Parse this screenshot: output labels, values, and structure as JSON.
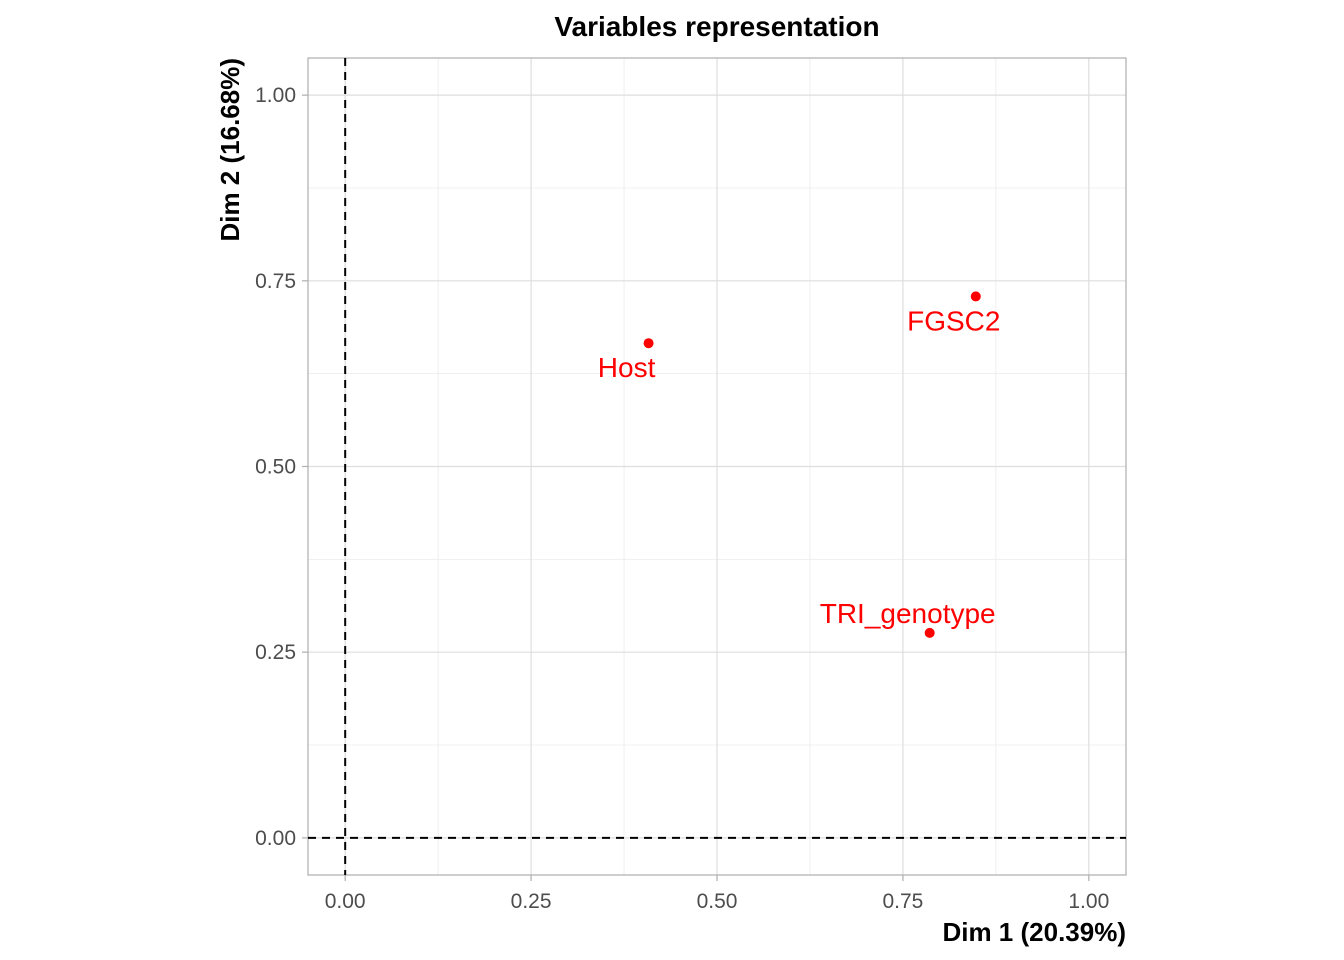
{
  "chart_data": {
    "type": "scatter",
    "title": "Variables representation",
    "xlabel": "Dim 1 (20.39%)",
    "ylabel": "Dim 2 (16.68%)",
    "xlim": [
      -0.05,
      1.05
    ],
    "ylim": [
      -0.05,
      1.05
    ],
    "xticks": [
      0.0,
      0.25,
      0.5,
      0.75,
      1.0
    ],
    "yticks": [
      0.0,
      0.25,
      0.5,
      0.75,
      1.0
    ],
    "xtick_labels": [
      "0.00",
      "0.25",
      "0.50",
      "0.75",
      "1.00"
    ],
    "ytick_labels": [
      "0.00",
      "0.25",
      "0.50",
      "0.75",
      "1.00"
    ],
    "grid": true,
    "reference_lines": {
      "x": 0,
      "y": 0,
      "style": "dashed"
    },
    "point_color": "#ff0000",
    "points": [
      {
        "label": "Host",
        "x": 0.408,
        "y": 0.666,
        "label_position": "below"
      },
      {
        "label": "FGSC2",
        "x": 0.848,
        "y": 0.729,
        "label_position": "below"
      },
      {
        "label": "TRI_genotype",
        "x": 0.786,
        "y": 0.276,
        "label_position": "above"
      }
    ]
  }
}
